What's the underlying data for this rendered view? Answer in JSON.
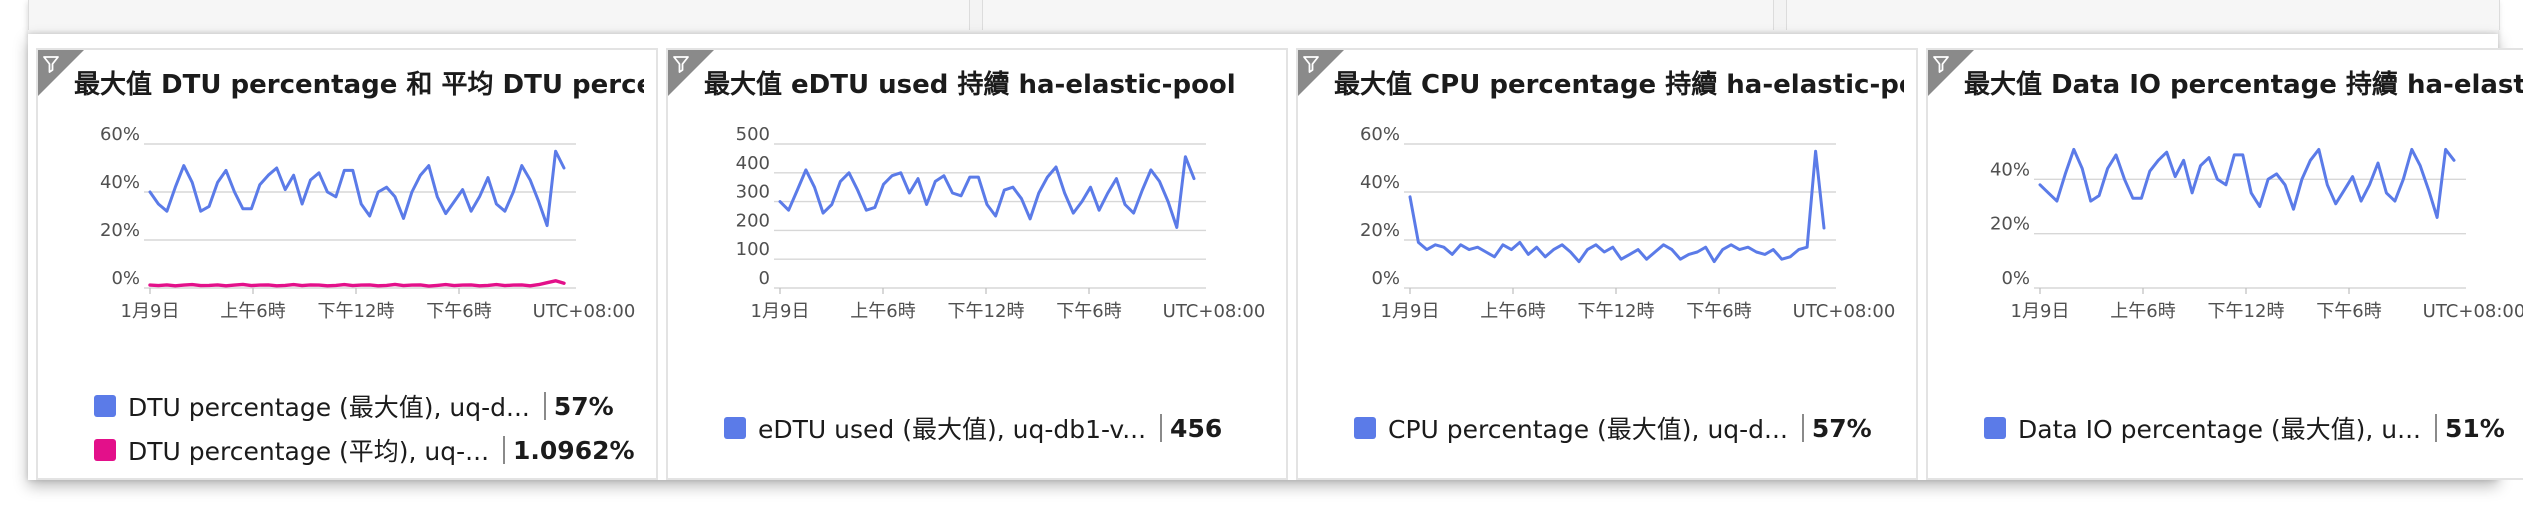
{
  "colors": {
    "series_blue": "#5b7be8",
    "series_pink": "#e3108a",
    "grid": "#d7d7d7",
    "text": "#1b1b1b"
  },
  "icons": {
    "tile_corner": "filter-icon"
  },
  "tiles": [
    {
      "title": "最大值 DTU percentage 和 平均 DTU percen...",
      "legend": [
        {
          "name": "DTU percentage (最大值), uq-d...",
          "value": "57%",
          "color": "#5b7be8"
        },
        {
          "name": "DTU percentage (平均), uq-...",
          "value": "1.0962%",
          "color": "#e3108a"
        }
      ]
    },
    {
      "title": "最大值 eDTU used 持續 ha-elastic-pool",
      "legend": [
        {
          "name": "eDTU used (最大值), uq-db1-v...",
          "value": "456",
          "color": "#5b7be8"
        }
      ]
    },
    {
      "title": "最大值 CPU percentage 持續 ha-elastic-pool",
      "legend": [
        {
          "name": "CPU percentage (最大值), uq-d...",
          "value": "57%",
          "color": "#5b7be8"
        }
      ]
    },
    {
      "title": "最大值 Data IO percentage 持續 ha-elastic-...",
      "legend": [
        {
          "name": "Data IO percentage (最大值), u...",
          "value": "51%",
          "color": "#5b7be8"
        }
      ]
    }
  ],
  "chart_data": [
    {
      "type": "line",
      "title": "最大值 DTU percentage 和 平均 DTU percen...",
      "x_ticks": [
        "1月9日",
        "上午6時",
        "下午12時",
        "下午6時",
        "UTC+08:00"
      ],
      "y_ticks": [
        "0%",
        "20%",
        "40%",
        "60%"
      ],
      "ylim": [
        0,
        60
      ],
      "grid": true,
      "series": [
        {
          "name": "DTU percentage (最大值), uq-d...",
          "color": "#5b7be8",
          "values": [
            40,
            35,
            32,
            42,
            51,
            44,
            32,
            34,
            44,
            49,
            40,
            33,
            33,
            43,
            47,
            50,
            41,
            47,
            35,
            45,
            48,
            40,
            38,
            49,
            49,
            35,
            30,
            40,
            42,
            38,
            29,
            40,
            47,
            51,
            38,
            31,
            36,
            41,
            32,
            38,
            46,
            35,
            32,
            40,
            51,
            45,
            36,
            26,
            57,
            50
          ]
        },
        {
          "name": "DTU percentage (平均), uq-...",
          "color": "#e3108a",
          "values": [
            1.2,
            1.0,
            1.3,
            0.9,
            1.2,
            1.4,
            1.0,
            1.1,
            1.3,
            0.9,
            1.2,
            1.5,
            1.0,
            1.2,
            1.3,
            0.9,
            1.1,
            1.4,
            1.0,
            1.3,
            1.2,
            0.9,
            1.1,
            1.4,
            1.0,
            1.2,
            1.3,
            0.9,
            1.1,
            1.5,
            1.0,
            1.2,
            1.3,
            0.8,
            1.1,
            1.4,
            1.0,
            1.2,
            1.3,
            0.9,
            1.1,
            1.4,
            1.0,
            1.2,
            1.3,
            0.9,
            1.4,
            2.2,
            3.0,
            2.0
          ]
        }
      ]
    },
    {
      "type": "line",
      "title": "最大值 eDTU used 持續 ha-elastic-pool",
      "x_ticks": [
        "1月9日",
        "上午6時",
        "下午12時",
        "下午6時",
        "UTC+08:00"
      ],
      "y_ticks": [
        "0",
        "100",
        "200",
        "300",
        "400",
        "500"
      ],
      "ylim": [
        0,
        500
      ],
      "grid": true,
      "series": [
        {
          "name": "eDTU used (最大值), uq-db1-v...",
          "color": "#5b7be8",
          "values": [
            300,
            270,
            340,
            410,
            350,
            260,
            290,
            370,
            400,
            340,
            270,
            280,
            360,
            390,
            400,
            330,
            380,
            290,
            370,
            390,
            330,
            320,
            385,
            385,
            290,
            250,
            340,
            350,
            310,
            240,
            330,
            385,
            420,
            330,
            260,
            300,
            350,
            270,
            330,
            380,
            290,
            260,
            340,
            410,
            370,
            300,
            210,
            456,
            380
          ]
        }
      ]
    },
    {
      "type": "line",
      "title": "最大值 CPU percentage 持續 ha-elastic-pool",
      "x_ticks": [
        "1月9日",
        "上午6時",
        "下午12時",
        "下午6時",
        "UTC+08:00"
      ],
      "y_ticks": [
        "0%",
        "20%",
        "40%",
        "60%"
      ],
      "ylim": [
        0,
        60
      ],
      "grid": true,
      "series": [
        {
          "name": "CPU percentage (最大值), uq-d...",
          "color": "#5b7be8",
          "values": [
            38,
            19,
            16,
            18,
            17,
            14,
            18,
            16,
            17,
            15,
            13,
            18,
            16,
            19,
            14,
            17,
            13,
            16,
            18,
            15,
            11,
            16,
            18,
            15,
            17,
            12,
            14,
            16,
            12,
            15,
            18,
            16,
            12,
            14,
            15,
            17,
            11,
            16,
            18,
            16,
            17,
            15,
            14,
            16,
            12,
            13,
            16,
            17,
            57,
            25
          ]
        }
      ]
    },
    {
      "type": "line",
      "title": "最大值 Data IO percentage 持續 ha-elastic-...",
      "x_ticks": [
        "1月9日",
        "上午6時",
        "下午12時",
        "下午6時",
        "UTC+08:00"
      ],
      "y_ticks": [
        "0%",
        "20%",
        "40%"
      ],
      "ylim": [
        0,
        53
      ],
      "grid": true,
      "series": [
        {
          "name": "Data IO percentage (最大值), u...",
          "color": "#5b7be8",
          "values": [
            38,
            35,
            32,
            42,
            51,
            44,
            32,
            34,
            44,
            49,
            40,
            33,
            33,
            43,
            47,
            50,
            41,
            47,
            35,
            45,
            48,
            40,
            38,
            49,
            49,
            35,
            30,
            40,
            42,
            38,
            29,
            40,
            47,
            51,
            38,
            31,
            36,
            41,
            32,
            38,
            46,
            35,
            32,
            40,
            51,
            45,
            36,
            26,
            51,
            47
          ]
        }
      ]
    }
  ]
}
